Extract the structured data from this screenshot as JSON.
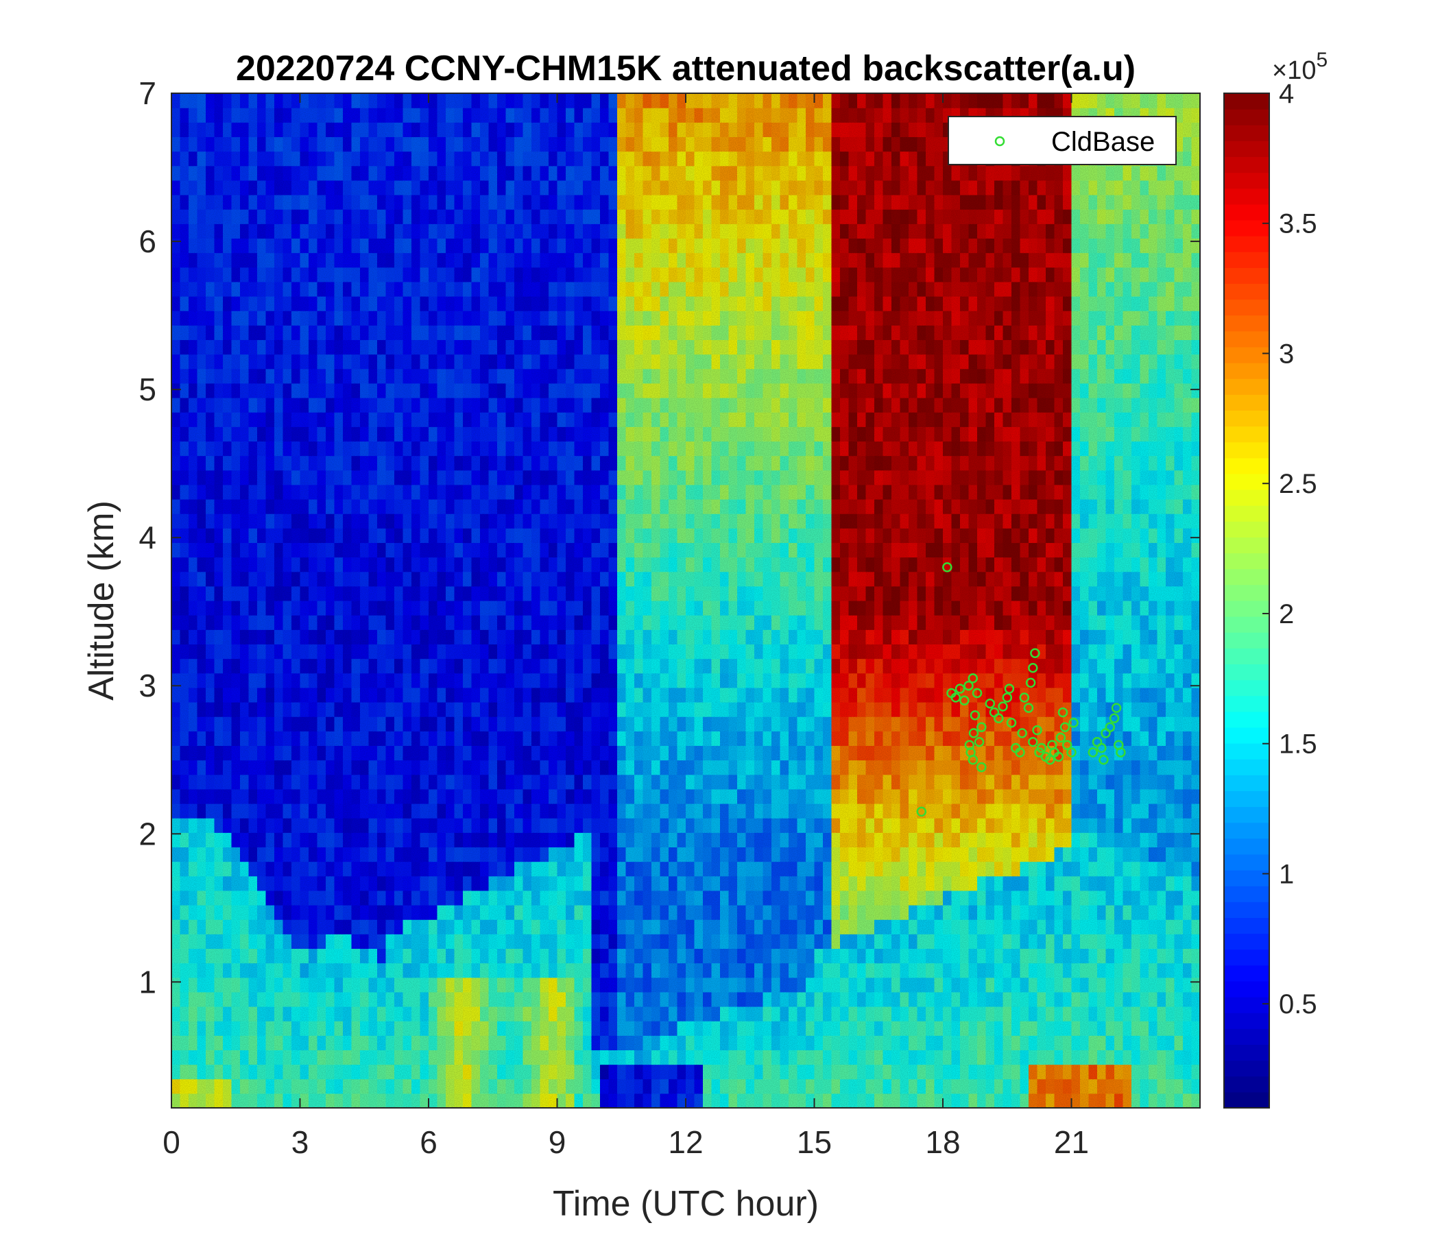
{
  "chart_data": {
    "type": "heatmap",
    "title": "20220724 CCNY-CHM15K attenuated backscatter(a.u)",
    "xlabel": "Time (UTC hour)",
    "ylabel": "Altitude (km)",
    "xlim": [
      0,
      24
    ],
    "ylim": [
      0.15,
      7
    ],
    "xticks": [
      "0",
      "3",
      "6",
      "9",
      "12",
      "15",
      "18",
      "21"
    ],
    "yticks": [
      "1",
      "2",
      "3",
      "4",
      "5",
      "6",
      "7"
    ],
    "colorbar": {
      "range": [
        0.1,
        4
      ],
      "ticks": [
        "0.5",
        "1",
        "1.5",
        "2",
        "2.5",
        "3",
        "3.5",
        "4"
      ],
      "exponent_base": "×10",
      "exponent_power": "5",
      "colormap": "jet"
    },
    "legend": {
      "placement": "top-right",
      "entry": "CldBase",
      "marker_color": "#33dd33"
    },
    "series": [
      {
        "name": "CldBase",
        "type": "scatter",
        "points": [
          [
            18.1,
            3.8
          ],
          [
            17.5,
            2.15
          ],
          [
            18.2,
            2.95
          ],
          [
            18.3,
            2.92
          ],
          [
            18.4,
            2.98
          ],
          [
            18.5,
            2.9
          ],
          [
            18.6,
            3.0
          ],
          [
            18.62,
            2.6
          ],
          [
            18.65,
            2.55
          ],
          [
            18.7,
            2.5
          ],
          [
            18.72,
            2.68
          ],
          [
            18.75,
            2.8
          ],
          [
            18.7,
            3.05
          ],
          [
            18.8,
            2.95
          ],
          [
            18.85,
            2.62
          ],
          [
            18.9,
            2.72
          ],
          [
            18.9,
            2.45
          ],
          [
            19.1,
            2.88
          ],
          [
            19.2,
            2.82
          ],
          [
            19.3,
            2.78
          ],
          [
            19.4,
            2.86
          ],
          [
            19.5,
            2.92
          ],
          [
            19.55,
            2.98
          ],
          [
            19.6,
            2.75
          ],
          [
            19.7,
            2.58
          ],
          [
            19.8,
            2.55
          ],
          [
            19.85,
            2.68
          ],
          [
            19.9,
            2.92
          ],
          [
            20.0,
            2.85
          ],
          [
            20.05,
            3.02
          ],
          [
            20.1,
            3.12
          ],
          [
            20.15,
            3.22
          ],
          [
            20.1,
            2.62
          ],
          [
            20.2,
            2.7
          ],
          [
            20.25,
            2.55
          ],
          [
            20.3,
            2.58
          ],
          [
            20.4,
            2.52
          ],
          [
            20.5,
            2.5
          ],
          [
            20.55,
            2.6
          ],
          [
            20.6,
            2.55
          ],
          [
            20.7,
            2.52
          ],
          [
            20.75,
            2.65
          ],
          [
            20.8,
            2.82
          ],
          [
            20.85,
            2.72
          ],
          [
            20.9,
            2.6
          ],
          [
            21.0,
            2.55
          ],
          [
            21.05,
            2.75
          ],
          [
            21.5,
            2.55
          ],
          [
            21.6,
            2.62
          ],
          [
            21.7,
            2.58
          ],
          [
            21.75,
            2.5
          ],
          [
            21.8,
            2.68
          ],
          [
            21.9,
            2.72
          ],
          [
            22.0,
            2.78
          ],
          [
            22.05,
            2.85
          ],
          [
            22.1,
            2.6
          ],
          [
            22.15,
            2.55
          ]
        ]
      }
    ]
  }
}
